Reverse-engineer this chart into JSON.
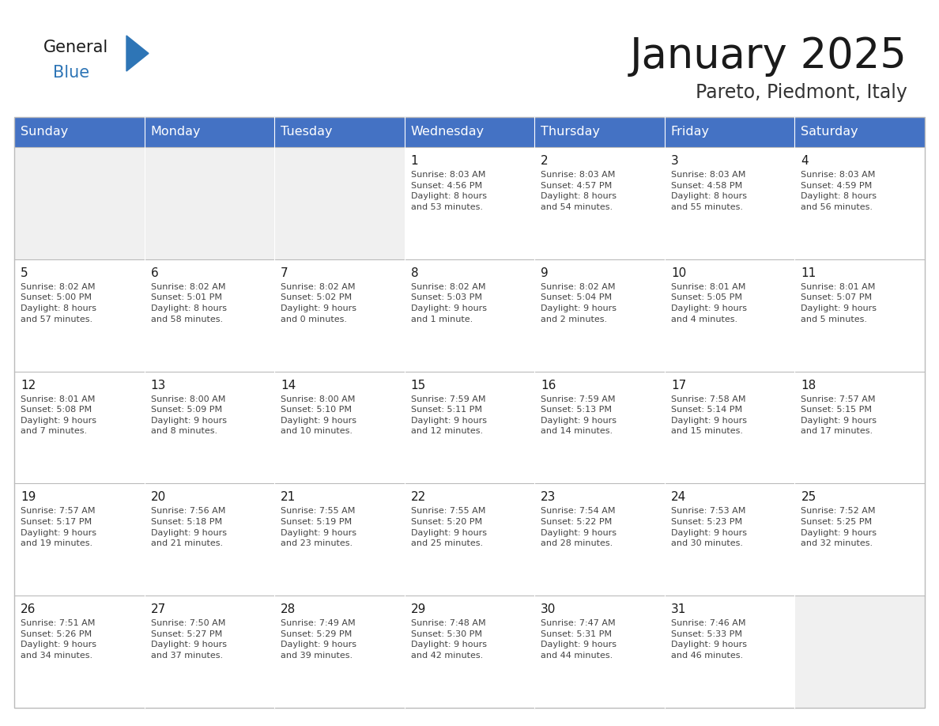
{
  "title": "January 2025",
  "subtitle": "Pareto, Piedmont, Italy",
  "days_of_week": [
    "Sunday",
    "Monday",
    "Tuesday",
    "Wednesday",
    "Thursday",
    "Friday",
    "Saturday"
  ],
  "header_bg": "#4472C4",
  "header_text_color": "#FFFFFF",
  "cell_bg_empty": "#F0F0F0",
  "cell_bg_filled": "#FFFFFF",
  "grid_color": "#BBBBBB",
  "title_color": "#1a1a1a",
  "subtitle_color": "#333333",
  "logo_general_color": "#1a1a1a",
  "logo_blue_color": "#2E75B6",
  "weeks": [
    [
      {
        "day": null,
        "info": null
      },
      {
        "day": null,
        "info": null
      },
      {
        "day": null,
        "info": null
      },
      {
        "day": 1,
        "info": "Sunrise: 8:03 AM\nSunset: 4:56 PM\nDaylight: 8 hours\nand 53 minutes."
      },
      {
        "day": 2,
        "info": "Sunrise: 8:03 AM\nSunset: 4:57 PM\nDaylight: 8 hours\nand 54 minutes."
      },
      {
        "day": 3,
        "info": "Sunrise: 8:03 AM\nSunset: 4:58 PM\nDaylight: 8 hours\nand 55 minutes."
      },
      {
        "day": 4,
        "info": "Sunrise: 8:03 AM\nSunset: 4:59 PM\nDaylight: 8 hours\nand 56 minutes."
      }
    ],
    [
      {
        "day": 5,
        "info": "Sunrise: 8:02 AM\nSunset: 5:00 PM\nDaylight: 8 hours\nand 57 minutes."
      },
      {
        "day": 6,
        "info": "Sunrise: 8:02 AM\nSunset: 5:01 PM\nDaylight: 8 hours\nand 58 minutes."
      },
      {
        "day": 7,
        "info": "Sunrise: 8:02 AM\nSunset: 5:02 PM\nDaylight: 9 hours\nand 0 minutes."
      },
      {
        "day": 8,
        "info": "Sunrise: 8:02 AM\nSunset: 5:03 PM\nDaylight: 9 hours\nand 1 minute."
      },
      {
        "day": 9,
        "info": "Sunrise: 8:02 AM\nSunset: 5:04 PM\nDaylight: 9 hours\nand 2 minutes."
      },
      {
        "day": 10,
        "info": "Sunrise: 8:01 AM\nSunset: 5:05 PM\nDaylight: 9 hours\nand 4 minutes."
      },
      {
        "day": 11,
        "info": "Sunrise: 8:01 AM\nSunset: 5:07 PM\nDaylight: 9 hours\nand 5 minutes."
      }
    ],
    [
      {
        "day": 12,
        "info": "Sunrise: 8:01 AM\nSunset: 5:08 PM\nDaylight: 9 hours\nand 7 minutes."
      },
      {
        "day": 13,
        "info": "Sunrise: 8:00 AM\nSunset: 5:09 PM\nDaylight: 9 hours\nand 8 minutes."
      },
      {
        "day": 14,
        "info": "Sunrise: 8:00 AM\nSunset: 5:10 PM\nDaylight: 9 hours\nand 10 minutes."
      },
      {
        "day": 15,
        "info": "Sunrise: 7:59 AM\nSunset: 5:11 PM\nDaylight: 9 hours\nand 12 minutes."
      },
      {
        "day": 16,
        "info": "Sunrise: 7:59 AM\nSunset: 5:13 PM\nDaylight: 9 hours\nand 14 minutes."
      },
      {
        "day": 17,
        "info": "Sunrise: 7:58 AM\nSunset: 5:14 PM\nDaylight: 9 hours\nand 15 minutes."
      },
      {
        "day": 18,
        "info": "Sunrise: 7:57 AM\nSunset: 5:15 PM\nDaylight: 9 hours\nand 17 minutes."
      }
    ],
    [
      {
        "day": 19,
        "info": "Sunrise: 7:57 AM\nSunset: 5:17 PM\nDaylight: 9 hours\nand 19 minutes."
      },
      {
        "day": 20,
        "info": "Sunrise: 7:56 AM\nSunset: 5:18 PM\nDaylight: 9 hours\nand 21 minutes."
      },
      {
        "day": 21,
        "info": "Sunrise: 7:55 AM\nSunset: 5:19 PM\nDaylight: 9 hours\nand 23 minutes."
      },
      {
        "day": 22,
        "info": "Sunrise: 7:55 AM\nSunset: 5:20 PM\nDaylight: 9 hours\nand 25 minutes."
      },
      {
        "day": 23,
        "info": "Sunrise: 7:54 AM\nSunset: 5:22 PM\nDaylight: 9 hours\nand 28 minutes."
      },
      {
        "day": 24,
        "info": "Sunrise: 7:53 AM\nSunset: 5:23 PM\nDaylight: 9 hours\nand 30 minutes."
      },
      {
        "day": 25,
        "info": "Sunrise: 7:52 AM\nSunset: 5:25 PM\nDaylight: 9 hours\nand 32 minutes."
      }
    ],
    [
      {
        "day": 26,
        "info": "Sunrise: 7:51 AM\nSunset: 5:26 PM\nDaylight: 9 hours\nand 34 minutes."
      },
      {
        "day": 27,
        "info": "Sunrise: 7:50 AM\nSunset: 5:27 PM\nDaylight: 9 hours\nand 37 minutes."
      },
      {
        "day": 28,
        "info": "Sunrise: 7:49 AM\nSunset: 5:29 PM\nDaylight: 9 hours\nand 39 minutes."
      },
      {
        "day": 29,
        "info": "Sunrise: 7:48 AM\nSunset: 5:30 PM\nDaylight: 9 hours\nand 42 minutes."
      },
      {
        "day": 30,
        "info": "Sunrise: 7:47 AM\nSunset: 5:31 PM\nDaylight: 9 hours\nand 44 minutes."
      },
      {
        "day": 31,
        "info": "Sunrise: 7:46 AM\nSunset: 5:33 PM\nDaylight: 9 hours\nand 46 minutes."
      },
      {
        "day": null,
        "info": null
      }
    ]
  ]
}
